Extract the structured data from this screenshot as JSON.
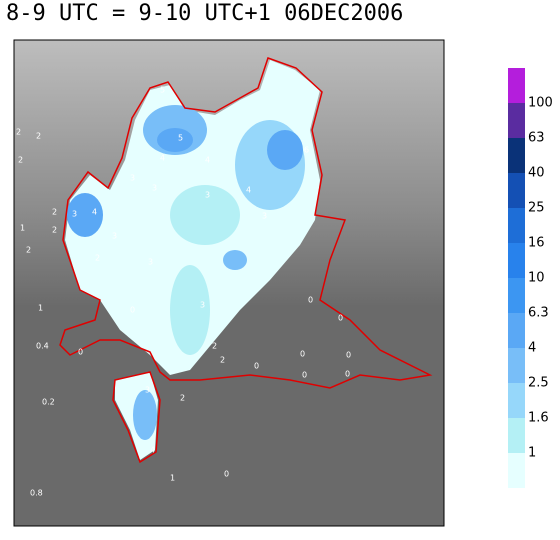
{
  "title": "8-9 UTC = 9-10 UTC+1 06DEC2006",
  "legend": {
    "levels": [
      1,
      1.6,
      2.5,
      4,
      6.3,
      10,
      16,
      25,
      40,
      63,
      100
    ],
    "colors": [
      "#e6ffff",
      "#b4f0f5",
      "#96d7fa",
      "#78bef8",
      "#5aa8f5",
      "#3c96f2",
      "#2882ec",
      "#1e6ed7",
      "#1450b4",
      "#0a3278",
      "#5a2ca0",
      "#b41edc"
    ]
  },
  "stations": [
    "2",
    "2",
    "2",
    "1",
    "2",
    "2",
    "1",
    "0.4",
    "0.2",
    "0.8",
    "5",
    "5",
    "4",
    "3",
    "3",
    "4",
    "3",
    "4",
    "3",
    "6",
    "2",
    "3",
    "4",
    "3",
    "2",
    "3",
    "3",
    "2",
    "0",
    "0",
    "0",
    "0",
    "0",
    "0",
    "0",
    "0",
    "0",
    "2",
    "3",
    "4",
    "2",
    "0",
    "1"
  ]
}
